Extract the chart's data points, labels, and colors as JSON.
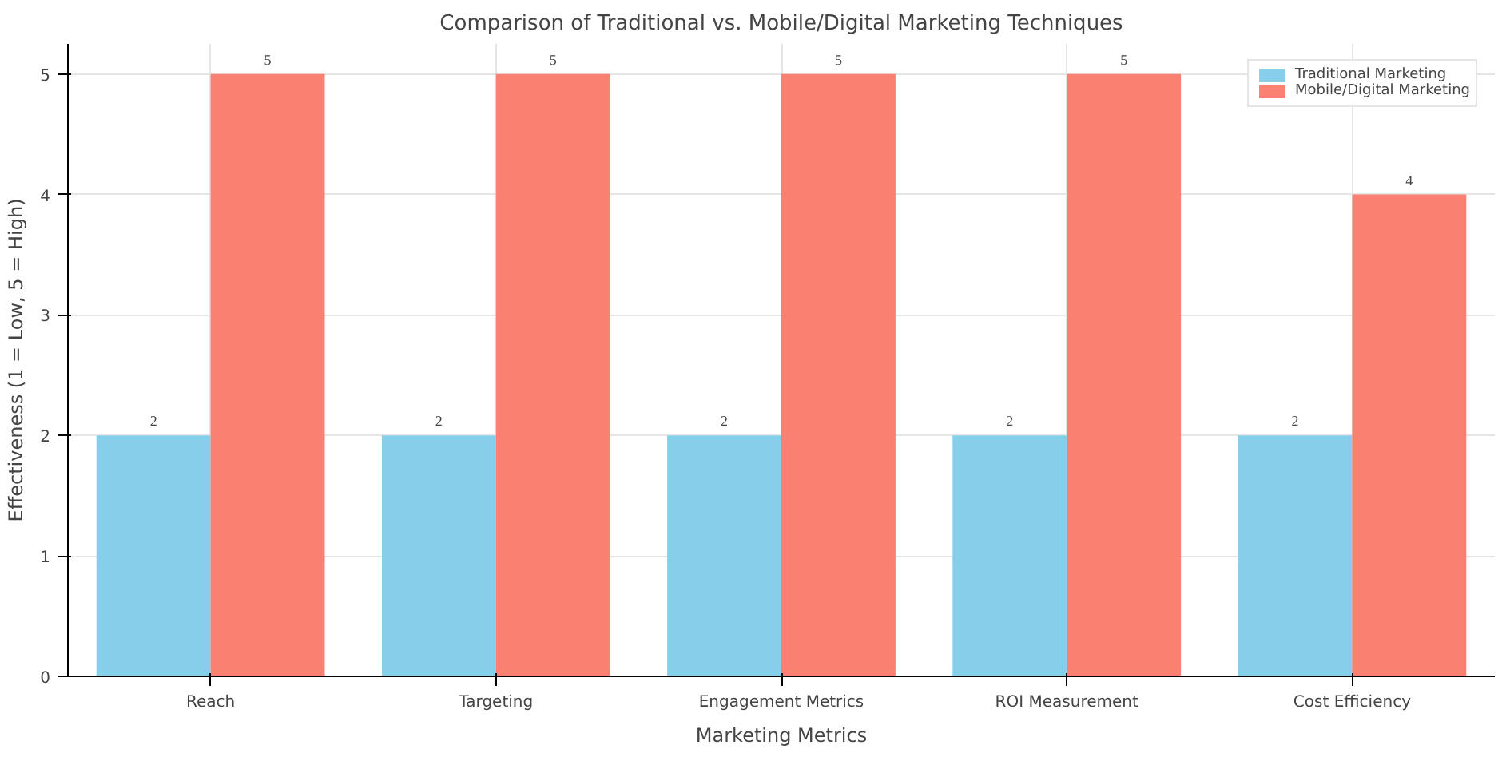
{
  "chart_data": {
    "type": "bar",
    "title": "Comparison of Traditional vs. Mobile/Digital Marketing Techniques",
    "xlabel": "Marketing Metrics",
    "ylabel": "Effectiveness (1 = Low, 5 = High)",
    "categories": [
      "Reach",
      "Targeting",
      "Engagement Metrics",
      "ROI Measurement",
      "Cost Efficiency"
    ],
    "series": [
      {
        "name": "Traditional Marketing",
        "color": "#87ceeb",
        "values": [
          2,
          2,
          2,
          2,
          2
        ]
      },
      {
        "name": "Mobile/Digital Marketing",
        "color": "#fa8072",
        "values": [
          5,
          5,
          5,
          5,
          4
        ]
      }
    ],
    "ylim": [
      0,
      5.25
    ],
    "yticks": [
      0,
      1,
      2,
      3,
      4,
      5
    ],
    "grid": true,
    "legend": "top right",
    "data_labels": true
  }
}
